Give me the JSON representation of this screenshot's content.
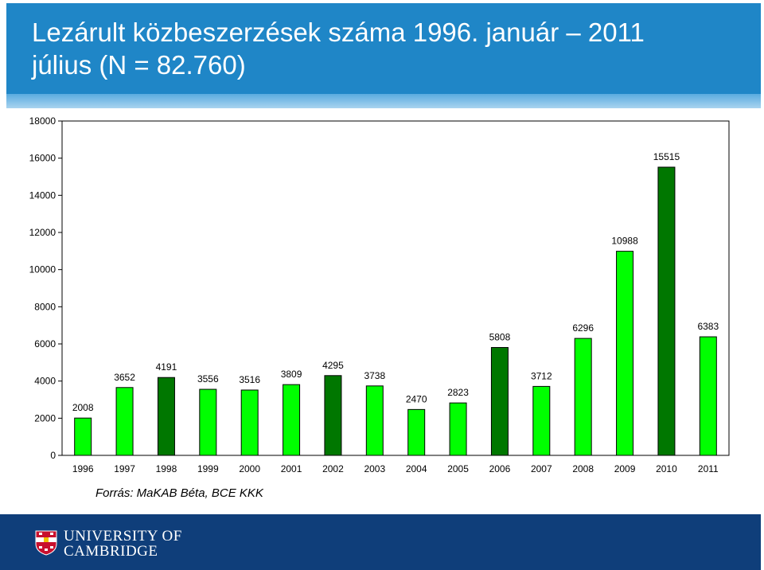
{
  "header": {
    "title_line1": "Lezárult közbeszerzések száma 1996. január – 2011",
    "title_line2": "július (N = 82.760)"
  },
  "source": "Forrás: MaKAB Béta, BCE KKK",
  "footer": {
    "logo_line1": "UNIVERSITY OF",
    "logo_line2": "CAMBRIDGE",
    "colors": {
      "background": "#0f3e7a"
    }
  },
  "chart_data": {
    "type": "bar",
    "title": "",
    "xlabel": "",
    "ylabel": "",
    "ylim": [
      0,
      18000
    ],
    "yticks": [
      0,
      2000,
      4000,
      6000,
      8000,
      10000,
      12000,
      14000,
      16000,
      18000
    ],
    "grid": false,
    "categories": [
      "1996",
      "1997",
      "1998",
      "1999",
      "2000",
      "2001",
      "2002",
      "2003",
      "2004",
      "2005",
      "2006",
      "2007",
      "2008",
      "2009",
      "2010",
      "2011"
    ],
    "values": [
      2008,
      3652,
      4191,
      3556,
      3516,
      3809,
      4295,
      3738,
      2470,
      2823,
      5808,
      3712,
      6296,
      10988,
      15515,
      6383
    ],
    "bar_colors": [
      "#00ff00",
      "#00ff00",
      "#007700",
      "#00ff00",
      "#00ff00",
      "#00ff00",
      "#007700",
      "#00ff00",
      "#00ff00",
      "#00ff00",
      "#007700",
      "#00ff00",
      "#00ff00",
      "#00ff00",
      "#007700",
      "#00ff00"
    ]
  }
}
